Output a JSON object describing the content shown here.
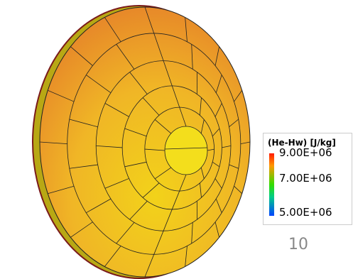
{
  "legend": {
    "title": "(He-Hw) [J/kg]",
    "labels": [
      "9.00E+06",
      "7.00E+06",
      "5.00E+06"
    ]
  },
  "page_number": "10"
}
